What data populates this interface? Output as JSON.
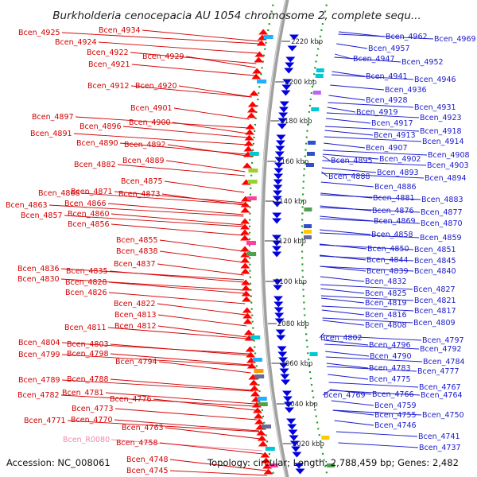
{
  "title": "Burkholderia cenocepacia AU 1054 chromosome 2, complete sequ...",
  "footer": {
    "accession": "Accession: NC_008061",
    "summary": "Topology: circular; Length: 2,788,459 bp; Genes: 2,482"
  },
  "colors": {
    "left_label": "#d40000",
    "right_label": "#1a1acc",
    "rna_label": "#f08aa8",
    "forward_gene": "#ff0000",
    "reverse_gene": "#0000e0",
    "backbone": "#a0a0a0",
    "dotted_ring": "#1f9a1f"
  },
  "kbp_ticks": [
    "2220 kbp",
    "2200 kbp",
    "2180 kbp",
    "2160 kbp",
    "2140 kbp",
    "2120 kbp",
    "2100 kbp",
    "2080 kbp",
    "2060 kbp",
    "2040 kbp",
    "2020 kbp"
  ],
  "left_labels": [
    {
      "text": "Bcen_4925",
      "type": "gene"
    },
    {
      "text": "Bcen_4934",
      "type": "gene"
    },
    {
      "text": "Bcen_4924",
      "type": "gene"
    },
    {
      "text": "Bcen_4922",
      "type": "gene"
    },
    {
      "text": "Bcen_4929",
      "type": "gene"
    },
    {
      "text": "Bcen_4921",
      "type": "gene"
    },
    {
      "text": "Bcen_4912",
      "type": "gene"
    },
    {
      "text": "Bcen_4920",
      "type": "gene"
    },
    {
      "text": "Bcen_4901",
      "type": "gene"
    },
    {
      "text": "Bcen_4897",
      "type": "gene"
    },
    {
      "text": "Bcen_4900",
      "type": "gene"
    },
    {
      "text": "Bcen_4896",
      "type": "gene"
    },
    {
      "text": "Bcen_4891",
      "type": "gene"
    },
    {
      "text": "Bcen_4890",
      "type": "gene"
    },
    {
      "text": "Bcen_4892",
      "type": "gene"
    },
    {
      "text": "Bcen_4889",
      "type": "gene"
    },
    {
      "text": "Bcen_4882",
      "type": "gene"
    },
    {
      "text": "Bcen_4875",
      "type": "gene"
    },
    {
      "text": "Bcen_4868",
      "type": "gene"
    },
    {
      "text": "Bcen_4871",
      "type": "gene"
    },
    {
      "text": "Bcen_4873",
      "type": "gene"
    },
    {
      "text": "Bcen_4866",
      "type": "gene"
    },
    {
      "text": "Bcen_4863",
      "type": "gene"
    },
    {
      "text": "Bcen_4860",
      "type": "gene"
    },
    {
      "text": "Bcen_4857",
      "type": "gene"
    },
    {
      "text": "Bcen_4856",
      "type": "gene"
    },
    {
      "text": "Bcen_4855",
      "type": "gene"
    },
    {
      "text": "Bcen_4838",
      "type": "gene"
    },
    {
      "text": "Bcen_4837",
      "type": "gene"
    },
    {
      "text": "Bcen_4836",
      "type": "gene"
    },
    {
      "text": "Bcen_4835",
      "type": "gene"
    },
    {
      "text": "Bcen_4830",
      "type": "gene"
    },
    {
      "text": "Bcen_4828",
      "type": "gene"
    },
    {
      "text": "Bcen_4826",
      "type": "gene"
    },
    {
      "text": "Bcen_4822",
      "type": "gene"
    },
    {
      "text": "Bcen_4813",
      "type": "gene"
    },
    {
      "text": "Bcen_4811",
      "type": "gene"
    },
    {
      "text": "Bcen_4812",
      "type": "gene"
    },
    {
      "text": "Bcen_4804",
      "type": "gene"
    },
    {
      "text": "Bcen_4803",
      "type": "gene"
    },
    {
      "text": "Bcen_4799",
      "type": "gene"
    },
    {
      "text": "Bcen_4798",
      "type": "gene"
    },
    {
      "text": "Bcen_4794",
      "type": "gene"
    },
    {
      "text": "Bcen_4789",
      "type": "gene"
    },
    {
      "text": "Bcen_4788",
      "type": "gene"
    },
    {
      "text": "Bcen_4782",
      "type": "gene"
    },
    {
      "text": "Bcen_4781",
      "type": "gene"
    },
    {
      "text": "Bcen_4776",
      "type": "gene"
    },
    {
      "text": "Bcen_4773",
      "type": "gene"
    },
    {
      "text": "Bcen_4771",
      "type": "gene"
    },
    {
      "text": "Bcen_4770",
      "type": "gene"
    },
    {
      "text": "Bcen_4763",
      "type": "gene"
    },
    {
      "text": "Bcen_R0080",
      "type": "rna"
    },
    {
      "text": "Bcen_4758",
      "type": "gene"
    },
    {
      "text": "Bcen_4748",
      "type": "gene"
    },
    {
      "text": "Bcen_4745",
      "type": "gene"
    }
  ],
  "right_labels": [
    {
      "text": "Bcen_4962"
    },
    {
      "text": "Bcen_4969"
    },
    {
      "text": "Bcen_4957"
    },
    {
      "text": "Bcen_4947"
    },
    {
      "text": "Bcen_4952"
    },
    {
      "text": "Bcen_4941"
    },
    {
      "text": "Bcen_4946"
    },
    {
      "text": "Bcen_4936"
    },
    {
      "text": "Bcen_4928"
    },
    {
      "text": "Bcen_4931"
    },
    {
      "text": "Bcen_4919"
    },
    {
      "text": "Bcen_4923"
    },
    {
      "text": "Bcen_4917"
    },
    {
      "text": "Bcen_4918"
    },
    {
      "text": "Bcen_4913"
    },
    {
      "text": "Bcen_4914"
    },
    {
      "text": "Bcen_4907"
    },
    {
      "text": "Bcen_4908"
    },
    {
      "text": "Bcen_4902"
    },
    {
      "text": "Bcen_4895"
    },
    {
      "text": "Bcen_4903"
    },
    {
      "text": "Bcen_4893"
    },
    {
      "text": "Bcen_4888"
    },
    {
      "text": "Bcen_4894"
    },
    {
      "text": "Bcen_4886"
    },
    {
      "text": "Bcen_4881"
    },
    {
      "text": "Bcen_4883"
    },
    {
      "text": "Bcen_4876"
    },
    {
      "text": "Bcen_4877"
    },
    {
      "text": "Bcen_4869"
    },
    {
      "text": "Bcen_4870"
    },
    {
      "text": "Bcen_4858"
    },
    {
      "text": "Bcen_4859"
    },
    {
      "text": "Bcen_4850"
    },
    {
      "text": "Bcen_4851"
    },
    {
      "text": "Bcen_4844"
    },
    {
      "text": "Bcen_4845"
    },
    {
      "text": "Bcen_4839"
    },
    {
      "text": "Bcen_4840"
    },
    {
      "text": "Bcen_4832"
    },
    {
      "text": "Bcen_4827"
    },
    {
      "text": "Bcen_4825"
    },
    {
      "text": "Bcen_4821"
    },
    {
      "text": "Bcen_4819"
    },
    {
      "text": "Bcen_4817"
    },
    {
      "text": "Bcen_4816"
    },
    {
      "text": "Bcen_4809"
    },
    {
      "text": "Bcen_4808"
    },
    {
      "text": "Bcen_4802"
    },
    {
      "text": "Bcen_4797"
    },
    {
      "text": "Bcen_4796"
    },
    {
      "text": "Bcen_4792"
    },
    {
      "text": "Bcen_4790"
    },
    {
      "text": "Bcen_4784"
    },
    {
      "text": "Bcen_4783"
    },
    {
      "text": "Bcen_4777"
    },
    {
      "text": "Bcen_4775"
    },
    {
      "text": "Bcen_4767"
    },
    {
      "text": "Bcen_4769"
    },
    {
      "text": "Bcen_4766"
    },
    {
      "text": "Bcen_4764"
    },
    {
      "text": "Bcen_4759"
    },
    {
      "text": "Bcen_4755"
    },
    {
      "text": "Bcen_4750"
    },
    {
      "text": "Bcen_4746"
    },
    {
      "text": "Bcen_4741"
    },
    {
      "text": "Bcen_4737"
    }
  ]
}
